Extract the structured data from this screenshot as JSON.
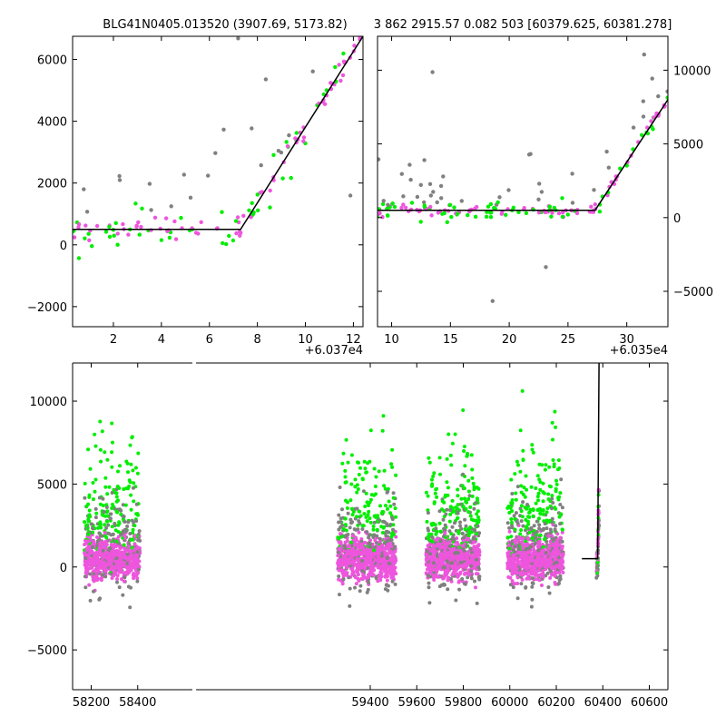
{
  "titles": {
    "left": "BLG41N0405.013520 (3907.69, 5173.82)",
    "right": "3 862 2915.57 0.082 503 [60379.625, 60381.278]"
  },
  "colors": {
    "gray": "#808080",
    "green": "#00ee00",
    "magenta": "#ee55dd",
    "model": "#000000"
  },
  "chart_data": [
    {
      "type": "scatter",
      "panel": "top-left",
      "offset_label": "+6.037e4",
      "xlim": [
        0.3,
        12.4
      ],
      "ylim": [
        -2650,
        6750
      ],
      "xticks": [
        2,
        4,
        6,
        8,
        10,
        12
      ],
      "yticks": [
        -2000,
        0,
        2000,
        4000,
        6000
      ],
      "xtick_labels": [
        "2",
        "4",
        "6",
        "8",
        "10",
        "12"
      ],
      "ytick_labels": [
        "−2000",
        "0",
        "2000",
        "4000",
        "6000"
      ],
      "model_line": [
        [
          0.3,
          500
        ],
        [
          7.3,
          500
        ],
        [
          12.4,
          6750
        ]
      ]
    },
    {
      "type": "scatter",
      "panel": "top-right",
      "offset_label": "+6.035e4",
      "xlim": [
        8.8,
        33.5
      ],
      "ylim": [
        -7400,
        12300
      ],
      "xticks": [
        10,
        15,
        20,
        25,
        30
      ],
      "yticks": [
        -5000,
        0,
        5000,
        10000
      ],
      "xtick_labels": [
        "10",
        "15",
        "20",
        "25",
        "30"
      ],
      "ytick_labels": [
        "−5000",
        "0",
        "5000",
        "10000"
      ],
      "model_line": [
        [
          8.8,
          500
        ],
        [
          27.3,
          500
        ],
        [
          33.5,
          8000
        ]
      ]
    },
    {
      "type": "scatter",
      "panel": "bottom",
      "xlim": [
        58120,
        60680
      ],
      "ylim": [
        -7400,
        12300
      ],
      "xticks": [
        58200,
        58400,
        59400,
        59600,
        59800,
        60000,
        60200,
        60400,
        60600
      ],
      "yticks": [
        -5000,
        0,
        5000,
        10000
      ],
      "xtick_labels": [
        "58200",
        "58400",
        "59400",
        "59600",
        "59800",
        "60000",
        "60200",
        "60400",
        "60600"
      ],
      "ytick_labels": [
        "−5000",
        "0",
        "5000",
        "10000"
      ],
      "model_line": [
        [
          60310,
          500
        ],
        [
          60378,
          500
        ],
        [
          60384,
          12300
        ]
      ],
      "seasons": [
        {
          "x_start": 58170,
          "x_end": 58410
        },
        {
          "x_start": 59260,
          "x_end": 59510
        },
        {
          "x_start": 59640,
          "x_end": 59870
        },
        {
          "x_start": 59990,
          "x_end": 60230
        },
        {
          "x_start": 60372,
          "x_end": 60384
        }
      ]
    }
  ]
}
